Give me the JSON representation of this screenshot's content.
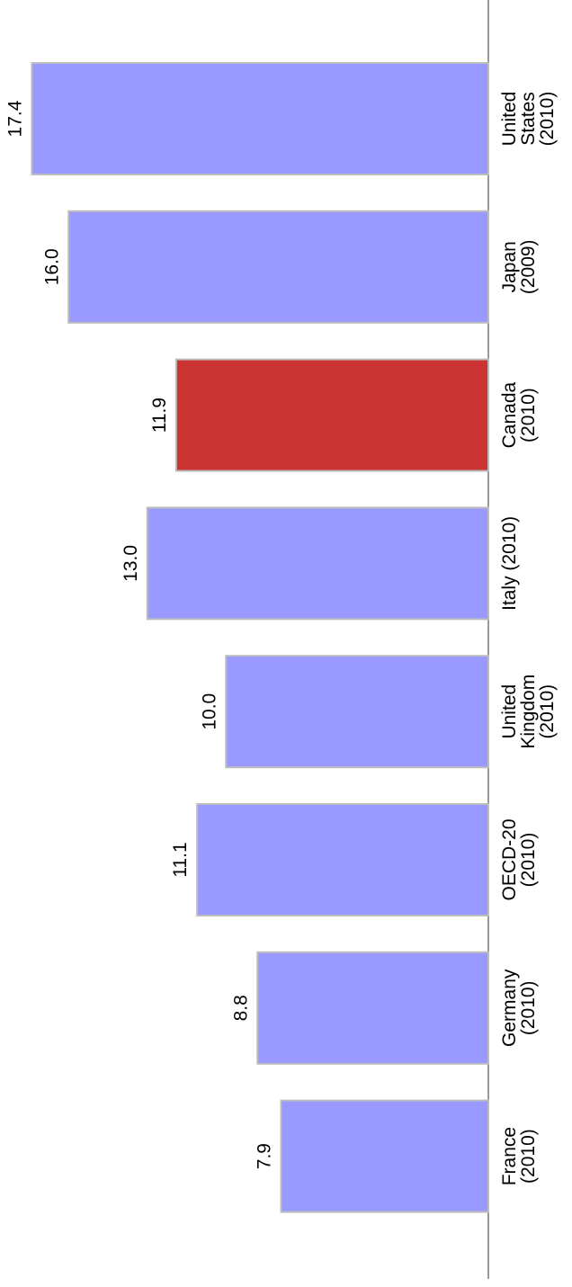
{
  "chart_data": {
    "type": "bar",
    "orientation": "vertical-bars-rotated",
    "title": "",
    "xlabel": "",
    "ylabel": "",
    "ylim": [
      0,
      19.3
    ],
    "grid": false,
    "legend": "none",
    "colors": {
      "default": "#9999ff",
      "highlight": "#cc3333",
      "border": "#bdbdbd",
      "axis": "#999999"
    },
    "categories": [
      "United States (2010)",
      "Japan (2009)",
      "Canada (2010)",
      "Italy (2010)",
      "United Kingdom (2010)",
      "OECD-20 (2010)",
      "Germany (2010)",
      "France (2010)"
    ],
    "category_lines": [
      [
        "United",
        "States",
        "(2010)"
      ],
      [
        "Japan",
        "(2009)"
      ],
      [
        "Canada",
        "(2010)"
      ],
      [
        "Italy (2010)"
      ],
      [
        "United",
        "Kingdom",
        "(2010)"
      ],
      [
        "OECD-20",
        "(2010)"
      ],
      [
        "Germany",
        "(2010)"
      ],
      [
        "France",
        "(2010)"
      ]
    ],
    "values": [
      17.4,
      16.0,
      11.9,
      13.0,
      10.0,
      11.1,
      8.8,
      7.9
    ],
    "value_labels": [
      "17.4",
      "16.0",
      "11.9",
      "13.0",
      "10.0",
      "11.1",
      "8.8",
      "7.9"
    ],
    "highlight": [
      "Canada (2010)"
    ]
  }
}
